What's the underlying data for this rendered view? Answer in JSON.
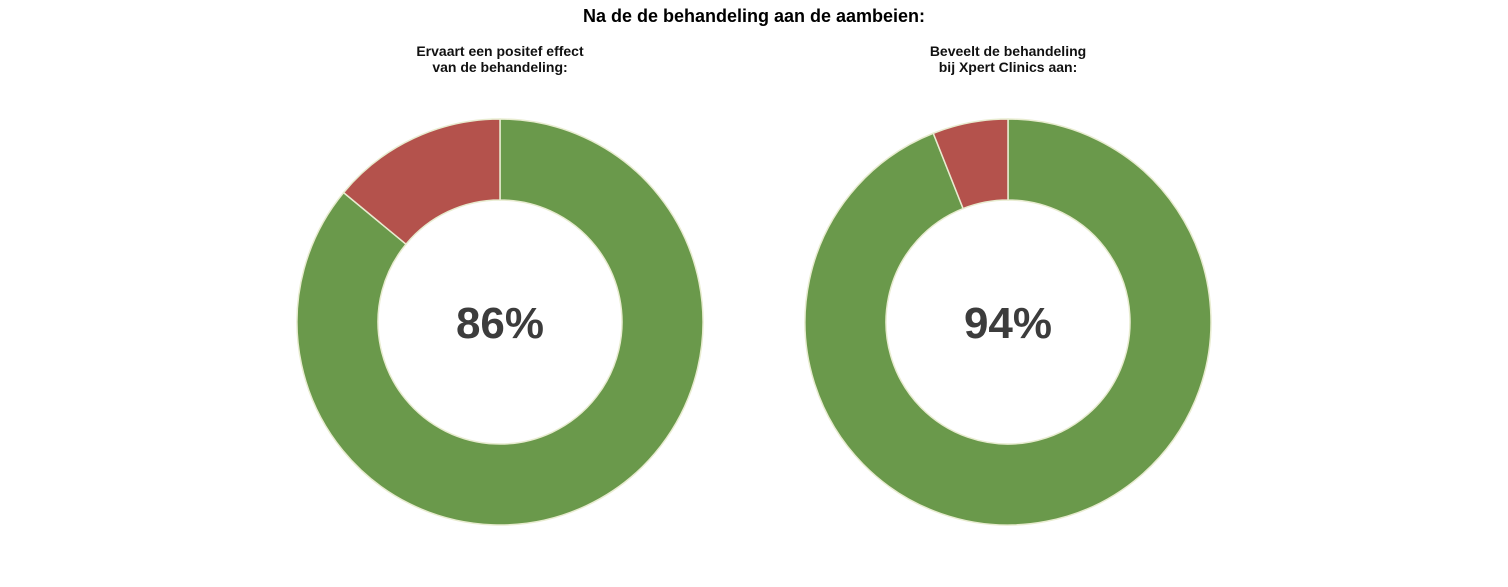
{
  "title": "Na de de behandeling aan de aambeien:",
  "colors": {
    "positive": "#6a994b",
    "negative": "#b4524c",
    "stroke": "#e8ecd0"
  },
  "chart_data": [
    {
      "type": "pie",
      "title_lines": [
        "Ervaart een positef effect",
        "van de behandeling:"
      ],
      "center_label": "86%",
      "slices": [
        {
          "value": 86
        },
        {
          "value": 14
        }
      ]
    },
    {
      "type": "pie",
      "title_lines": [
        "Beveelt de behandeling",
        "bij Xpert Clinics aan:"
      ],
      "center_label": "94%",
      "slices": [
        {
          "value": 94
        },
        {
          "value": 6
        }
      ]
    }
  ]
}
